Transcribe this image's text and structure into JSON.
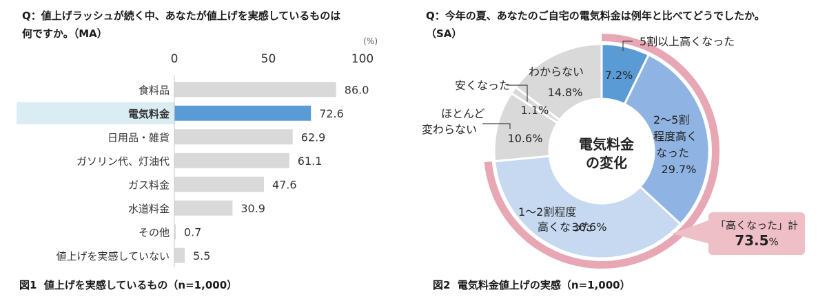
{
  "left_panel": {
    "question_line1": "Q：値上げラッシュが続く中、あなたが値上げを実感しているものは",
    "question_line2": "何ですか。（MA）",
    "unit": "(%)",
    "caption": "図1  値上げを実感しているもの（n=1,000）"
  },
  "right_panel": {
    "question_line1": "Q：今年の夏、あなたのご自宅の電気料金は例年と比べてどうでしたか。",
    "question_line2": "（SA）",
    "center_label_line1": "電気料金",
    "center_label_line2": "の変化",
    "callout_line1": "「高くなった」計",
    "callout_value": "73.5",
    "callout_unit": "%",
    "caption": "図2  電気料金値上げの実感（n=1,000）"
  },
  "chart_data": [
    {
      "type": "bar",
      "orientation": "horizontal",
      "categories": [
        "食料品",
        "電気料金",
        "日用品・雑貨",
        "ガソリン代、灯油代",
        "ガス料金",
        "水道料金",
        "その他",
        "値上げを実感していない"
      ],
      "values": [
        86.0,
        72.6,
        62.9,
        61.1,
        47.6,
        30.9,
        0.7,
        5.5
      ],
      "value_labels": [
        "86.0",
        "72.6",
        "62.9",
        "61.1",
        "47.6",
        "30.9",
        "0.7",
        "5.5"
      ],
      "highlight_index": 1,
      "xlim": [
        0,
        100
      ],
      "ticks": [
        0,
        50,
        100
      ],
      "tick_labels": [
        "0",
        "50",
        "100"
      ],
      "bar_color": "#d9d9d9",
      "highlight_color": "#5b9bd5",
      "highlight_bg": "#daedf3"
    },
    {
      "type": "pie",
      "donut": true,
      "slices": [
        {
          "label": "5割以上高くなった",
          "value": 7.2,
          "value_label": "7.2%",
          "color": "#5b9bd5"
        },
        {
          "label": "2～5割程度高くなった",
          "value": 29.7,
          "value_label": "29.7%",
          "color": "#8fb4e3"
        },
        {
          "label": "1～2割程度高くなった",
          "value": 36.6,
          "value_label": "36.6%",
          "color": "#c6d9f1"
        },
        {
          "label": "ほとんど変わらない",
          "value": 10.6,
          "value_label": "10.6%",
          "color": "#d9d9d9"
        },
        {
          "label": "安くなった",
          "value": 1.1,
          "value_label": "1.1%",
          "color": "#d9d9d9"
        },
        {
          "label": "わからない",
          "value": 14.8,
          "value_label": "14.8%",
          "color": "#d9d9d9"
        }
      ],
      "arc_color": "#e8a7b5"
    }
  ]
}
